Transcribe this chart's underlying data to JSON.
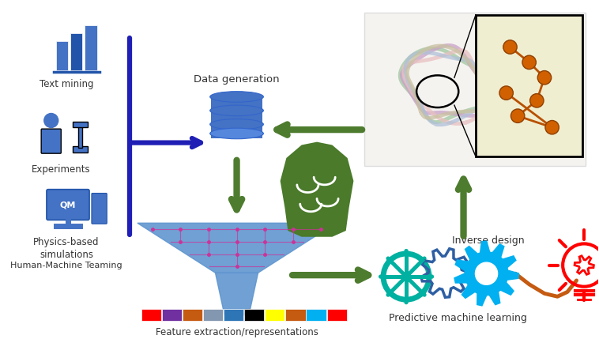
{
  "bg_color": "#ffffff",
  "fig_width": 7.58,
  "fig_height": 4.29,
  "dpi": 100,
  "color_bar_colors": [
    "#ff0000",
    "#7030a0",
    "#c55a11",
    "#8497b0",
    "#2e75b6",
    "#000000",
    "#ffff00",
    "#c55a11",
    "#00b0f0",
    "#ff0000"
  ],
  "arrow_blue": "#1f1fb5",
  "arrow_green": "#4e7c2f",
  "gear_teal": "#00b0a0",
  "gear_blue_dark": "#2e5fa3",
  "gear_blue_light": "#00b0f0",
  "bulb_red": "#ff0000",
  "funnel_blue": "#6096d0",
  "brain_green": "#4a7a2a",
  "icon_blue": "#4472c4",
  "wire_orange": "#c55a11",
  "text_labels": {
    "text_mining": "Text mining",
    "experiments": "Experiments",
    "physics": "Physics-based\nsimulations",
    "human_machine": "Human-Machine Teaming",
    "data_gen": "Data generation",
    "feature_ext": "Feature extraction/representations",
    "predictive_ml": "Predictive machine learning",
    "inverse_design": "Inverse design"
  },
  "fs": 8.5
}
